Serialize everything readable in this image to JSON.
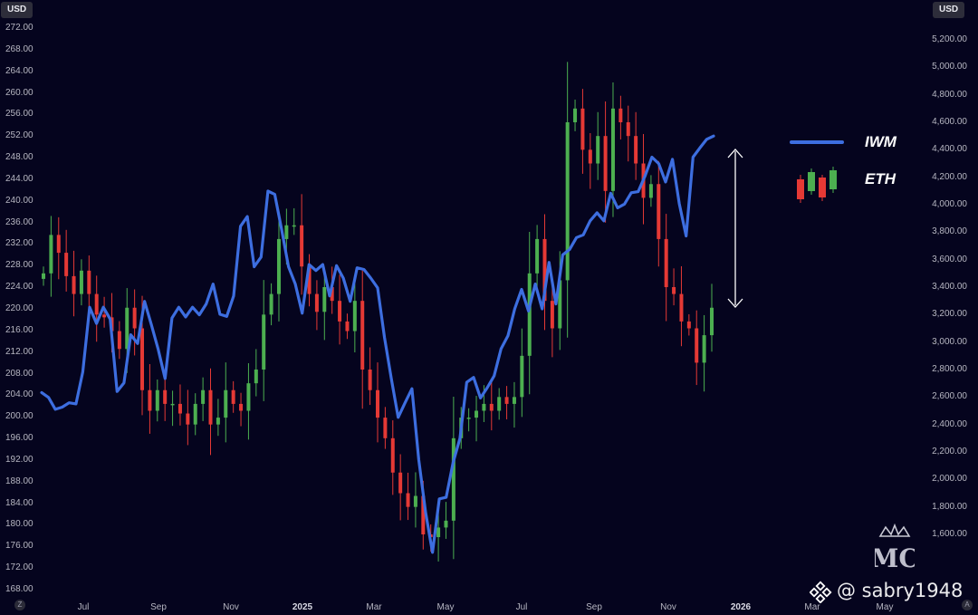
{
  "chart_data": {
    "type": "line+candlestick",
    "left_axis": {
      "unit": "USD",
      "ticks": [
        "272.00",
        "268.00",
        "264.00",
        "260.00",
        "256.00",
        "252.00",
        "248.00",
        "244.00",
        "240.00",
        "236.00",
        "232.00",
        "228.00",
        "224.00",
        "220.00",
        "216.00",
        "212.00",
        "208.00",
        "204.00",
        "200.00",
        "196.00",
        "192.00",
        "188.00",
        "184.00",
        "180.00",
        "176.00",
        "172.00",
        "168.00"
      ],
      "ylim": [
        168,
        272
      ]
    },
    "right_axis": {
      "unit": "USD",
      "ticks": [
        "5,200.00",
        "5,000.00",
        "4,800.00",
        "4,600.00",
        "4,400.00",
        "4,200.00",
        "4,000.00",
        "3,800.00",
        "3,600.00",
        "3,400.00",
        "3,200.00",
        "3,000.00",
        "2,800.00",
        "2,600.00",
        "2,400.00",
        "2,200.00",
        "2,000.00",
        "1,800.00",
        "1,600.00"
      ],
      "ylim": [
        1400,
        5300
      ]
    },
    "x_axis": {
      "ticks": [
        "Jul",
        "Sep",
        "Nov",
        "2025",
        "Mar",
        "May",
        "Jul",
        "Sep",
        "Nov",
        "2026",
        "Mar",
        "May"
      ],
      "bold_ticks": [
        "2025",
        "2026"
      ]
    },
    "series": [
      {
        "name": "IWM",
        "type": "line",
        "axis": "left",
        "color": "#3d6ee0",
        "values": [
          204.5,
          203.6,
          201.4,
          201.8,
          202.6,
          202.4,
          208.3,
          220.3,
          217.3,
          220.3,
          218.1,
          204.7,
          206.3,
          215.2,
          213.6,
          221.4,
          217.1,
          212.5,
          207.1,
          218.3,
          220.3,
          218.5,
          220.3,
          218.9,
          220.9,
          224.6,
          219.0,
          218.6,
          222.4,
          235.3,
          237.1,
          227.8,
          229.6,
          241.8,
          241.2,
          234.7,
          227.8,
          224.6,
          219.2,
          228.2,
          227.1,
          228.2,
          222.4,
          228.0,
          225.7,
          221.4,
          227.6,
          227.3,
          225.7,
          223.9,
          214.7,
          207.1,
          199.9,
          202.6,
          205.2,
          192.1,
          182.3,
          174.9,
          184.8,
          185.1,
          191.5,
          196.0,
          206.4,
          207.3,
          203.5,
          205.4,
          207.6,
          212.6,
          215.0,
          220.0,
          223.6,
          219.6,
          224.6,
          220.0,
          228.6,
          220.9,
          230.0,
          231.0,
          233.2,
          233.7,
          236.3,
          237.8,
          236.3,
          241.4,
          238.7,
          239.4,
          241.5,
          241.7,
          244.6,
          248.1,
          246.9,
          243.5,
          247.7,
          239.5,
          233.5,
          248.1,
          249.8,
          251.4,
          252.0
        ]
      },
      {
        "name": "ETH",
        "type": "candlestick",
        "axis": "right",
        "up_color": "#4caf50",
        "down_color": "#e53935",
        "closes": [
          3500,
          3780,
          3650,
          3480,
          3350,
          3520,
          3350,
          3200,
          3180,
          3080,
          2950,
          3250,
          3100,
          2650,
          2500,
          2650,
          2550,
          2550,
          2480,
          2400,
          2550,
          2650,
          2400,
          2450,
          2650,
          2550,
          2500,
          2700,
          2800,
          3200,
          3350,
          3750,
          3850,
          3850,
          3550,
          3350,
          3220,
          3400,
          3300,
          3150,
          3080,
          3300,
          2800,
          2650,
          2450,
          2300,
          2050,
          1900,
          1800,
          1880,
          1600,
          1580,
          1650,
          1700,
          2300,
          2450,
          2450,
          2500,
          2550,
          2500,
          2600,
          2550,
          2600,
          2900,
          3500,
          3750,
          3300,
          3100,
          3450,
          4600,
          4700,
          4400,
          4300,
          4500,
          4100,
          4700,
          4600,
          4500,
          4300,
          4050,
          4150,
          3750,
          3400,
          3350,
          3150,
          3100,
          2850,
          3050,
          3250
        ]
      }
    ],
    "legend": [
      "IWM",
      "ETH"
    ],
    "annotation": "double-headed arrow between IWM and ETH at right edge",
    "grid": false
  },
  "ui": {
    "left_badge": "USD",
    "right_badge": "USD",
    "corner_left": "Z",
    "corner_right": "A",
    "watermark_text": "@ sabry1948",
    "logo_text": "MC"
  }
}
